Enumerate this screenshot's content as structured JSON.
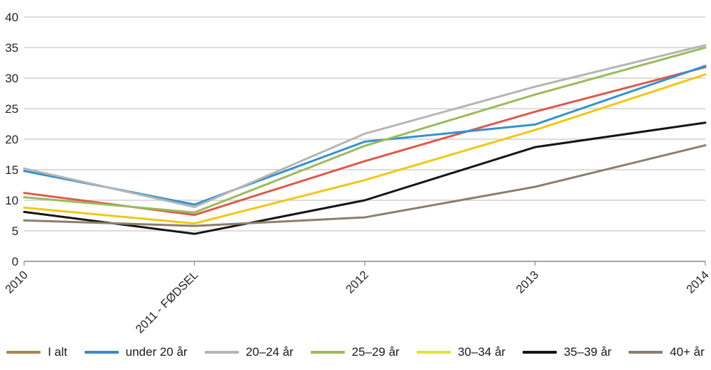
{
  "chart_data": {
    "type": "line",
    "title": "",
    "categories": [
      "2010",
      "2011 - FØDSEL",
      "2012",
      "2013",
      "2014"
    ],
    "y_axis": {
      "min": 0,
      "max": 40,
      "tick_step": 5,
      "ticks": [
        0,
        5,
        10,
        15,
        20,
        25,
        30,
        35,
        40
      ]
    },
    "grid": true,
    "legend_position": "bottom",
    "series": [
      {
        "name": "I alt",
        "color": "#DC5A4B",
        "legend_color": "#A6854F",
        "values": [
          11.2,
          7.6,
          16.4,
          24.5,
          31.8
        ]
      },
      {
        "name": "under 20 år",
        "color": "#3392CE",
        "legend_color": "#3F87C9",
        "values": [
          14.8,
          9.3,
          19.6,
          22.4,
          32.0
        ]
      },
      {
        "name": "20–24 år",
        "color": "#B5B5B5",
        "legend_color": "#B5B5B5",
        "values": [
          15.2,
          8.9,
          20.9,
          28.6,
          35.4
        ]
      },
      {
        "name": "25–29 år",
        "color": "#9CBB59",
        "legend_color": "#9CBB59",
        "values": [
          10.5,
          8.0,
          18.9,
          27.3,
          35.0
        ]
      },
      {
        "name": "30–34 år",
        "color": "#F2C714",
        "legend_color": "#E2E42F",
        "values": [
          8.8,
          6.2,
          13.3,
          21.5,
          30.6
        ]
      },
      {
        "name": "35–39 år",
        "color": "#151515",
        "legend_color": "#151515",
        "values": [
          8.1,
          4.5,
          10.0,
          18.7,
          22.7
        ]
      },
      {
        "name": "40+ år",
        "color": "#8C7E6C",
        "legend_color": "#8C7E6C",
        "values": [
          6.7,
          5.8,
          7.2,
          12.2,
          19.0
        ]
      }
    ]
  },
  "colors": {
    "background": "#FFFFFF",
    "gridline": "#C6C6C6",
    "axis": "#898989",
    "tick_text": "#262626"
  }
}
